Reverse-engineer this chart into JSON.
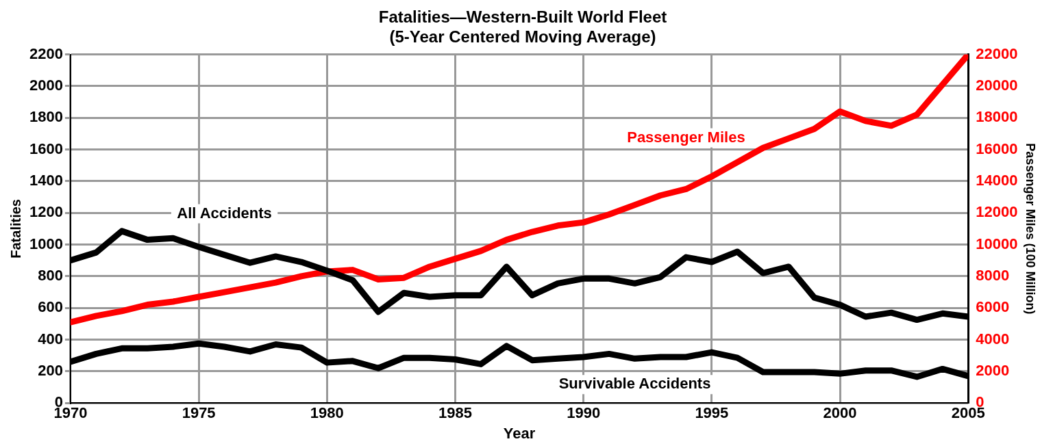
{
  "chart_data": {
    "type": "line",
    "title": "Fatalities—Western-Built World Fleet",
    "subtitle": "(5-Year Centered Moving Average)",
    "xlabel": "Year",
    "ylabel": "Fatalities",
    "y2label": "Passenger Miles (100 Million)",
    "x": [
      1970,
      1971,
      1972,
      1973,
      1974,
      1975,
      1976,
      1977,
      1978,
      1979,
      1980,
      1981,
      1982,
      1983,
      1984,
      1985,
      1986,
      1987,
      1988,
      1989,
      1990,
      1991,
      1992,
      1993,
      1994,
      1995,
      1996,
      1997,
      1998,
      1999,
      2000,
      2001,
      2002,
      2003,
      2004,
      2005
    ],
    "series": [
      {
        "name": "All Accidents",
        "color": "#000000",
        "values": [
          900,
          950,
          1085,
          1030,
          1040,
          985,
          935,
          885,
          925,
          890,
          835,
          775,
          575,
          695,
          670,
          680,
          680,
          860,
          680,
          755,
          785,
          785,
          755,
          795,
          920,
          890,
          955,
          820,
          860,
          665,
          620,
          545,
          570,
          525,
          565,
          545
        ]
      },
      {
        "name": "Survivable Accidents",
        "color": "#000000",
        "values": [
          260,
          310,
          345,
          345,
          355,
          375,
          355,
          325,
          370,
          350,
          255,
          265,
          220,
          285,
          285,
          275,
          245,
          360,
          270,
          280,
          290,
          310,
          280,
          290,
          290,
          320,
          285,
          195,
          195,
          195,
          185,
          205,
          205,
          165,
          215,
          170
        ]
      },
      {
        "name": "Passenger Miles",
        "color": "#ff0000",
        "axis": "y2",
        "values": [
          5100,
          5500,
          5800,
          6200,
          6400,
          6700,
          7000,
          7300,
          7600,
          8000,
          8300,
          8400,
          7800,
          7900,
          8600,
          9100,
          9600,
          10300,
          10800,
          11200,
          11400,
          11900,
          12500,
          13100,
          13500,
          14300,
          15200,
          16100,
          16700,
          17300,
          18400,
          17800,
          17500,
          18200,
          20100,
          22000
        ]
      }
    ],
    "xlim": [
      1970,
      2005
    ],
    "xticks": [
      1970,
      1975,
      1980,
      1985,
      1990,
      1995,
      2000,
      2005
    ],
    "ylim": [
      0,
      2200
    ],
    "yticks": [
      0,
      200,
      400,
      600,
      800,
      1000,
      1200,
      1400,
      1600,
      1800,
      2000,
      2200
    ],
    "y2lim": [
      0,
      22000
    ],
    "y2ticks": [
      0,
      2000,
      4000,
      6000,
      8000,
      10000,
      12000,
      14000,
      16000,
      18000,
      20000,
      22000
    ],
    "grid": true,
    "legend": false,
    "marker": "none",
    "line_style": "solid"
  }
}
